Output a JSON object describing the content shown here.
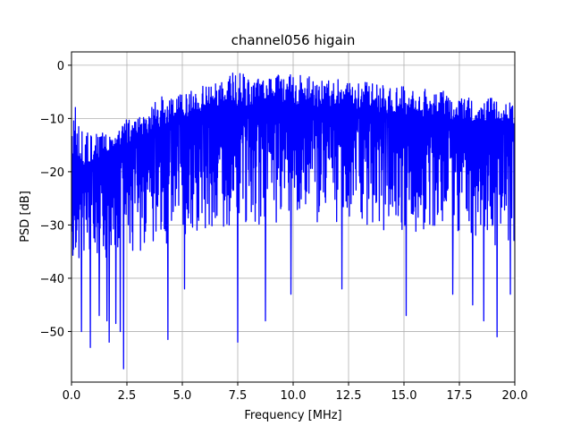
{
  "chart_data": {
    "type": "line",
    "title": "channel056 higain",
    "xlabel": "Frequency [MHz]",
    "ylabel": "PSD [dB]",
    "xlim": [
      0,
      20
    ],
    "ylim": [
      -59.5,
      2.5
    ],
    "grid": true,
    "line_color": "#0000ff",
    "x_ticks": [
      0,
      2.5,
      5,
      7.5,
      10,
      12.5,
      15,
      17.5,
      20
    ],
    "x_tick_labels": [
      "0.0",
      "2.5",
      "5.0",
      "7.5",
      "10.0",
      "12.5",
      "15.0",
      "17.5",
      "20.0"
    ],
    "y_ticks": [
      0,
      -10,
      -20,
      -30,
      -40,
      -50
    ],
    "y_tick_labels": [
      "0",
      "−10",
      "−20",
      "−30",
      "−40",
      "−50"
    ],
    "series": [
      {
        "upper_envelope": {
          "x": [
            0,
            0.2,
            0.5,
            1,
            1.5,
            2,
            2.5,
            3,
            3.5,
            4,
            5,
            6,
            7,
            7.5,
            8,
            9,
            10,
            11,
            12,
            13,
            14,
            15,
            16,
            17,
            18,
            19,
            20
          ],
          "y": [
            -12,
            -7,
            -12,
            -13,
            -12.5,
            -12,
            -10,
            -9,
            -8,
            -6,
            -5,
            -3.5,
            -2.5,
            -0.5,
            -2,
            -2,
            -1.5,
            -2,
            -2.5,
            -3,
            -3.5,
            -4,
            -4.5,
            -5,
            -6,
            -6,
            -7
          ]
        },
        "typical_upper": {
          "x": [
            0,
            1,
            2,
            3,
            4,
            5,
            6,
            7,
            8,
            9,
            10,
            11,
            12,
            13,
            14,
            15,
            16,
            17,
            18,
            19,
            20
          ],
          "y": [
            -20,
            -18,
            -16,
            -14,
            -12,
            -10,
            -9,
            -8,
            -8,
            -7.5,
            -7.5,
            -8,
            -8,
            -8.5,
            -9,
            -9.5,
            -10,
            -10.5,
            -11,
            -11.5,
            -12
          ]
        },
        "typical_lower": {
          "x": [
            0,
            1,
            2,
            3,
            4,
            5,
            6,
            7,
            8,
            9,
            10,
            11,
            12,
            13,
            14,
            15,
            16,
            17,
            18,
            19,
            20
          ],
          "y": [
            -37,
            -37,
            -36,
            -35,
            -34,
            -33,
            -32,
            -31,
            -30,
            -30,
            -30,
            -30,
            -30,
            -30,
            -31,
            -31,
            -32,
            -32,
            -33,
            -34,
            -35
          ]
        },
        "notable_minima": [
          {
            "x": 0.45,
            "y": -50
          },
          {
            "x": 0.85,
            "y": -53
          },
          {
            "x": 1.25,
            "y": -47
          },
          {
            "x": 1.6,
            "y": -48
          },
          {
            "x": 1.7,
            "y": -52
          },
          {
            "x": 2.0,
            "y": -48.5
          },
          {
            "x": 2.2,
            "y": -50
          },
          {
            "x": 2.35,
            "y": -57
          },
          {
            "x": 4.35,
            "y": -51.5
          },
          {
            "x": 5.1,
            "y": -42
          },
          {
            "x": 7.5,
            "y": -52
          },
          {
            "x": 8.75,
            "y": -48
          },
          {
            "x": 9.9,
            "y": -43
          },
          {
            "x": 12.2,
            "y": -42
          },
          {
            "x": 15.1,
            "y": -47
          },
          {
            "x": 17.2,
            "y": -43
          },
          {
            "x": 18.1,
            "y": -45
          },
          {
            "x": 18.6,
            "y": -48
          },
          {
            "x": 19.2,
            "y": -51
          },
          {
            "x": 19.8,
            "y": -43
          }
        ]
      }
    ]
  }
}
